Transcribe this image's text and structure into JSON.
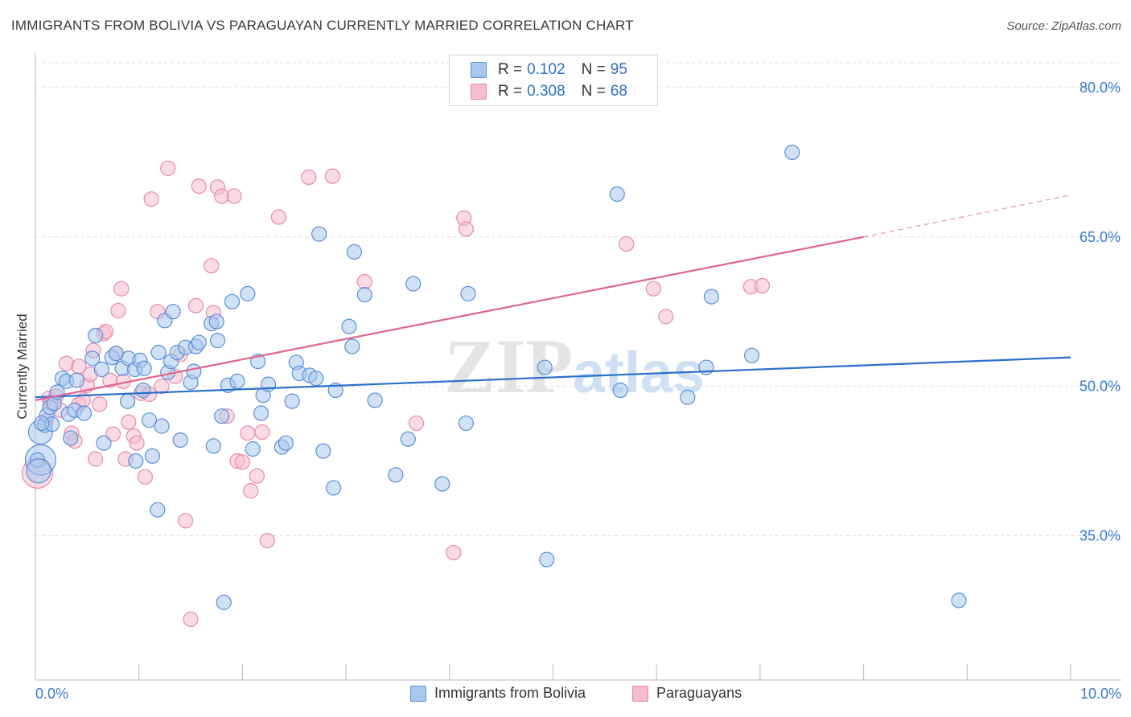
{
  "header": {
    "title": "IMMIGRANTS FROM BOLIVIA VS PARAGUAYAN CURRENTLY MARRIED CORRELATION CHART",
    "source": "Source: ZipAtlas.com"
  },
  "watermark": {
    "zip": "ZIP",
    "atlas": "atlas"
  },
  "colors": {
    "blue_fill": "#aac8ef",
    "blue_stroke": "#5b8fd8",
    "blue_line": "#2a6fcc",
    "pink_fill": "#f6bdd0",
    "pink_stroke": "#e889aa",
    "pink_line": "#e0648e",
    "tick_label": "#3a78d0",
    "grid": "#dcdcdc"
  },
  "legend": {
    "rows": [
      {
        "r_label": "R =",
        "r_value": "0.102",
        "n_label": "N =",
        "n_value": "95"
      },
      {
        "r_label": "R =",
        "r_value": "0.308",
        "n_label": "N =",
        "n_value": "68"
      }
    ]
  },
  "bottom_legend": {
    "series1": "Immigrants from Bolivia",
    "series2": "Paraguayans"
  },
  "chart_data": {
    "type": "scatter",
    "title": "IMMIGRANTS FROM BOLIVIA VS PARAGUAYAN CURRENTLY MARRIED CORRELATION CHART",
    "xlabel": "",
    "ylabel": "Currently Married",
    "xlim": [
      0,
      10
    ],
    "ylim": [
      20.5,
      82.5
    ],
    "x_tick_labels": [
      "0.0%",
      "10.0%"
    ],
    "y_ticks": [
      35,
      50,
      65,
      80
    ],
    "y_tick_labels": [
      "35.0%",
      "50.0%",
      "65.0%",
      "80.0%"
    ],
    "grid": true,
    "legend_position": "top-center",
    "series": [
      {
        "name": "Immigrants from Bolivia",
        "color": "#5b8fd8",
        "trend": {
          "x0": 0,
          "y0": 48.9,
          "x1": 10,
          "y1": 52.9
        },
        "points": [
          [
            0.05,
            45.4,
            1
          ],
          [
            0.05,
            42.6,
            2
          ],
          [
            0.09,
            46.1,
            0
          ],
          [
            0.11,
            47.1,
            0
          ],
          [
            0.14,
            47.9,
            0
          ],
          [
            0.16,
            46.2,
            0
          ],
          [
            0.18,
            48.3,
            0
          ],
          [
            0.21,
            49.4,
            0
          ],
          [
            0.26,
            50.8,
            0
          ],
          [
            0.3,
            50.5,
            0
          ],
          [
            0.32,
            47.2,
            0
          ],
          [
            0.34,
            44.8,
            0
          ],
          [
            0.38,
            47.6,
            0
          ],
          [
            0.4,
            50.6,
            0
          ],
          [
            0.47,
            47.3,
            0
          ],
          [
            0.55,
            52.8,
            0
          ],
          [
            0.58,
            55.1,
            0
          ],
          [
            0.64,
            51.7,
            0
          ],
          [
            0.66,
            44.3,
            0
          ],
          [
            0.74,
            52.9,
            0
          ],
          [
            0.78,
            53.3,
            0
          ],
          [
            0.84,
            51.8,
            0
          ],
          [
            0.89,
            48.5,
            0
          ],
          [
            0.9,
            52.8,
            0
          ],
          [
            0.96,
            51.7,
            0
          ],
          [
            0.97,
            42.5,
            0
          ],
          [
            1.01,
            52.6,
            0
          ],
          [
            1.04,
            49.6,
            0
          ],
          [
            1.05,
            51.8,
            0
          ],
          [
            1.1,
            46.6,
            0
          ],
          [
            1.13,
            43.0,
            0
          ],
          [
            1.18,
            37.6,
            0
          ],
          [
            1.19,
            53.4,
            0
          ],
          [
            1.22,
            46.0,
            0
          ],
          [
            1.25,
            56.6,
            0
          ],
          [
            1.28,
            51.4,
            0
          ],
          [
            1.31,
            52.5,
            0
          ],
          [
            1.33,
            57.5,
            0
          ],
          [
            1.37,
            53.4,
            0
          ],
          [
            1.4,
            44.6,
            0
          ],
          [
            1.45,
            53.9,
            0
          ],
          [
            1.5,
            50.4,
            0
          ],
          [
            1.53,
            51.5,
            0
          ],
          [
            1.55,
            54.0,
            0
          ],
          [
            1.58,
            54.4,
            0
          ],
          [
            1.7,
            56.3,
            0
          ],
          [
            1.72,
            44.0,
            0
          ],
          [
            1.75,
            56.5,
            0
          ],
          [
            1.76,
            54.6,
            0
          ],
          [
            1.8,
            47.0,
            0
          ],
          [
            1.82,
            28.3,
            0
          ],
          [
            1.86,
            50.1,
            0
          ],
          [
            1.9,
            58.5,
            0
          ],
          [
            1.95,
            50.5,
            0
          ],
          [
            2.05,
            59.3,
            0
          ],
          [
            2.1,
            43.7,
            0
          ],
          [
            2.15,
            52.5,
            0
          ],
          [
            2.18,
            47.3,
            0
          ],
          [
            2.2,
            49.1,
            0
          ],
          [
            2.25,
            50.2,
            0
          ],
          [
            2.38,
            43.9,
            0
          ],
          [
            2.42,
            44.3,
            0
          ],
          [
            2.48,
            48.5,
            0
          ],
          [
            2.52,
            52.4,
            0
          ],
          [
            2.55,
            51.3,
            0
          ],
          [
            2.65,
            51.1,
            0
          ],
          [
            2.71,
            50.8,
            0
          ],
          [
            2.74,
            65.3,
            0
          ],
          [
            2.78,
            43.5,
            0
          ],
          [
            2.88,
            39.8,
            0
          ],
          [
            2.9,
            49.6,
            0
          ],
          [
            3.03,
            56.0,
            0
          ],
          [
            3.06,
            54.0,
            0
          ],
          [
            3.08,
            63.5,
            0
          ],
          [
            3.18,
            59.2,
            0
          ],
          [
            3.28,
            48.6,
            0
          ],
          [
            3.48,
            41.1,
            0
          ],
          [
            3.6,
            44.7,
            0
          ],
          [
            3.93,
            40.2,
            0
          ],
          [
            3.65,
            60.3,
            0
          ],
          [
            4.16,
            46.3,
            0
          ],
          [
            4.18,
            59.3,
            0
          ],
          [
            4.92,
            51.9,
            0
          ],
          [
            4.94,
            32.6,
            0
          ],
          [
            5.62,
            69.3,
            0
          ],
          [
            5.65,
            49.6,
            0
          ],
          [
            6.3,
            48.9,
            0
          ],
          [
            6.48,
            51.9,
            0
          ],
          [
            6.53,
            59.0,
            0
          ],
          [
            6.92,
            53.1,
            0
          ],
          [
            7.31,
            73.5,
            0
          ],
          [
            8.92,
            28.5,
            0
          ],
          [
            0.06,
            46.3,
            0
          ],
          [
            0.02,
            42.6,
            0
          ],
          [
            0.03,
            41.5,
            1
          ]
        ]
      },
      {
        "name": "Paraguayans",
        "color": "#e889aa",
        "trend": {
          "x0": 0,
          "y0": 48.6,
          "x1": 8.0,
          "y1": 65.0,
          "dash_x1": 10,
          "dash_y1": 69.2
        },
        "points": [
          [
            0.02,
            41.3,
            2
          ],
          [
            0.1,
            46.5,
            0
          ],
          [
            0.13,
            48.8,
            0
          ],
          [
            0.2,
            49.0,
            0
          ],
          [
            0.24,
            47.6,
            0
          ],
          [
            0.3,
            52.3,
            0
          ],
          [
            0.35,
            45.3,
            0
          ],
          [
            0.38,
            44.5,
            0
          ],
          [
            0.42,
            48.2,
            0
          ],
          [
            0.46,
            48.6,
            0
          ],
          [
            0.5,
            50.1,
            0
          ],
          [
            0.53,
            51.2,
            0
          ],
          [
            0.56,
            53.6,
            0
          ],
          [
            0.58,
            42.7,
            0
          ],
          [
            0.62,
            48.2,
            0
          ],
          [
            0.66,
            55.3,
            0
          ],
          [
            0.68,
            55.5,
            0
          ],
          [
            0.72,
            50.6,
            0
          ],
          [
            0.75,
            45.2,
            0
          ],
          [
            0.8,
            57.6,
            0
          ],
          [
            0.83,
            59.8,
            0
          ],
          [
            0.85,
            50.5,
            0
          ],
          [
            0.87,
            42.7,
            0
          ],
          [
            0.9,
            46.4,
            0
          ],
          [
            0.95,
            45.0,
            0
          ],
          [
            0.98,
            44.3,
            0
          ],
          [
            1.02,
            49.3,
            0
          ],
          [
            1.06,
            40.9,
            0
          ],
          [
            1.1,
            49.2,
            0
          ],
          [
            1.12,
            68.8,
            0
          ],
          [
            1.18,
            57.5,
            0
          ],
          [
            1.22,
            50.0,
            0
          ],
          [
            1.28,
            71.9,
            0
          ],
          [
            1.35,
            51.0,
            0
          ],
          [
            1.4,
            53.2,
            0
          ],
          [
            1.45,
            36.5,
            0
          ],
          [
            1.5,
            26.6,
            0
          ],
          [
            1.55,
            58.1,
            0
          ],
          [
            1.58,
            70.1,
            0
          ],
          [
            1.7,
            62.1,
            0
          ],
          [
            1.72,
            57.4,
            0
          ],
          [
            1.76,
            70.0,
            0
          ],
          [
            1.8,
            69.1,
            0
          ],
          [
            1.85,
            47.0,
            0
          ],
          [
            1.92,
            69.1,
            0
          ],
          [
            1.95,
            42.5,
            0
          ],
          [
            2.0,
            42.4,
            0
          ],
          [
            2.05,
            45.3,
            0
          ],
          [
            2.08,
            39.5,
            0
          ],
          [
            2.14,
            41.0,
            0
          ],
          [
            2.19,
            45.4,
            0
          ],
          [
            2.24,
            34.5,
            0
          ],
          [
            2.35,
            67.0,
            0
          ],
          [
            2.64,
            71.0,
            0
          ],
          [
            2.87,
            71.1,
            0
          ],
          [
            3.18,
            60.5,
            0
          ],
          [
            3.68,
            46.3,
            0
          ],
          [
            4.04,
            33.3,
            0
          ],
          [
            4.14,
            66.9,
            0
          ],
          [
            4.16,
            65.8,
            0
          ],
          [
            5.71,
            64.3,
            0
          ],
          [
            5.97,
            59.8,
            0
          ],
          [
            6.09,
            57.0,
            0
          ],
          [
            6.91,
            60.0,
            0
          ],
          [
            7.02,
            60.1,
            0
          ],
          [
            0.15,
            48.3,
            0
          ],
          [
            0.42,
            52.0,
            0
          ],
          [
            0.78,
            53.3,
            0
          ]
        ]
      }
    ]
  }
}
